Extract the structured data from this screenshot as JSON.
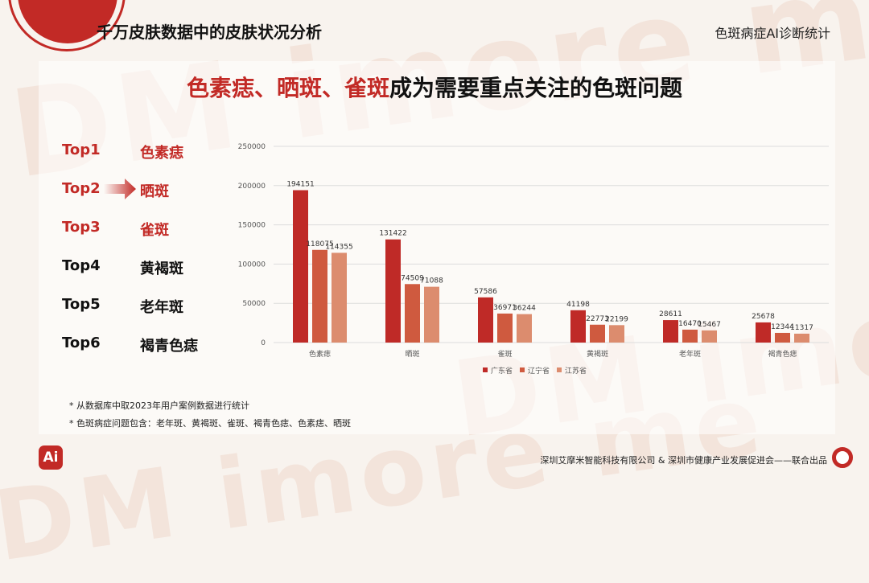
{
  "header": {
    "title": "千万皮肤数据中的皮肤状况分析",
    "subtitle": "色斑病症AI诊断统计"
  },
  "headline": {
    "highlight": "色素痣、晒斑、雀斑",
    "rest": "成为需要重点关注的色斑问题"
  },
  "ranking": [
    {
      "rank": "Top1",
      "name": "色素痣"
    },
    {
      "rank": "Top2",
      "name": "晒斑"
    },
    {
      "rank": "Top3",
      "name": "雀斑"
    },
    {
      "rank": "Top4",
      "name": "黄褐斑"
    },
    {
      "rank": "Top5",
      "name": "老年斑"
    },
    {
      "rank": "Top6",
      "name": "褐青色痣"
    }
  ],
  "notes": [
    "* 从数据库中取2023年用户案例数据进行统计",
    "* 色斑病症问题包含：老年斑、黄褐斑、雀斑、褐青色痣、色素痣、晒斑"
  ],
  "footer": {
    "text": "深圳艾摩米智能科技有限公司 & 深圳市健康产业发展促进会——联合出品"
  },
  "logo": {
    "text": "Ai"
  },
  "watermark": {
    "text": "DM imore me"
  },
  "colors": {
    "accent": "#c22a26",
    "series": [
      "#bf2a27",
      "#cf5a3f",
      "#dc8c6e"
    ],
    "grid": "#dcdcdc"
  },
  "chart_data": {
    "type": "bar",
    "categories": [
      "色素痣",
      "晒斑",
      "雀斑",
      "黄褐斑",
      "老年斑",
      "褐青色痣"
    ],
    "series": [
      {
        "name": "广东省",
        "values": [
          194151,
          131422,
          57586,
          41198,
          28611,
          25678
        ]
      },
      {
        "name": "辽宁省",
        "values": [
          118075,
          74509,
          36971,
          22773,
          16470,
          12344
        ]
      },
      {
        "name": "江苏省",
        "values": [
          114355,
          71088,
          36244,
          22199,
          15467,
          11317
        ]
      }
    ],
    "ylim": [
      0,
      250000
    ],
    "yticks": [
      0,
      50000,
      100000,
      150000,
      200000,
      250000
    ],
    "title": "",
    "xlabel": "",
    "ylabel": "",
    "legend": "bottom",
    "grid": true
  }
}
